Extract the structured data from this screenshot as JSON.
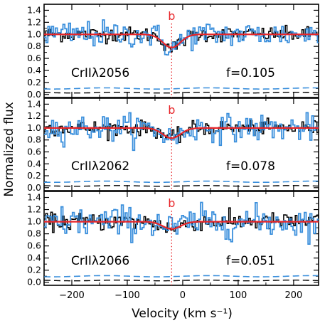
{
  "chart_data": {
    "type": "line",
    "ylabel": "Normalized flux",
    "xlabel": "Velocity (km s⁻¹)",
    "xlim": [
      -250,
      245
    ],
    "ylim": [
      -0.05,
      1.5
    ],
    "x_ticks": [
      -200,
      -100,
      0,
      100,
      200
    ],
    "y_ticks": [
      0.0,
      0.2,
      0.4,
      0.6,
      0.8,
      1.0,
      1.2,
      1.4
    ],
    "y_tick_labels": [
      "0.0",
      "0.2",
      "0.4",
      "0.6",
      "0.8",
      "1.0",
      "1.2",
      "1.4"
    ],
    "x_tick_labels": [
      "−200",
      "−100",
      "0",
      "100",
      "200"
    ],
    "component_marker": {
      "label": "b",
      "velocity": -20,
      "color": "#e8262a"
    },
    "colors": {
      "black_spectrum": "#000000",
      "blue_spectrum": "#3a8fdc",
      "model": "#e8262a"
    },
    "panels": [
      {
        "ion": "CrII",
        "wavelength": "2056",
        "f_label": "f=0.105",
        "depth": 0.22,
        "noise_black": 0.06,
        "noise_blue": 0.11
      },
      {
        "ion": "CrII",
        "wavelength": "2062",
        "f_label": "f=0.078",
        "depth": 0.17,
        "noise_black": 0.06,
        "noise_blue": 0.11
      },
      {
        "ion": "CrII",
        "wavelength": "2066",
        "f_label": "f=0.051",
        "depth": 0.12,
        "noise_black": 0.07,
        "noise_blue": 0.13
      }
    ]
  }
}
